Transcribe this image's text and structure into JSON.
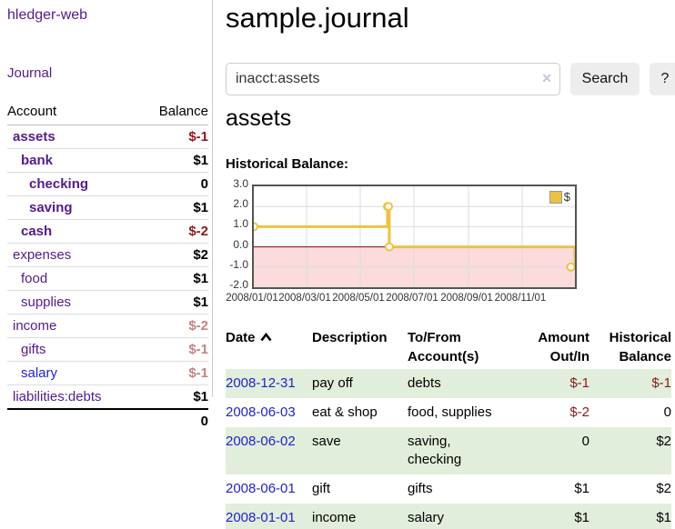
{
  "app": {
    "brand": "hledger-web"
  },
  "colors": {
    "accent_purple": "#551a8b",
    "link_blue": "#2222dd",
    "negative_strong": "#8b1a1a",
    "negative_soft": "#c48383",
    "stripe_green": "#e1eedb",
    "chart_line": "#edc240",
    "chart_negative_fill": "#fbdbdb",
    "chart_zero_line": "#8b0000",
    "chart_grid": "#dcdcdc"
  },
  "sidebar": {
    "journal_link": "Journal",
    "accounts": {
      "headers": {
        "account": "Account",
        "balance": "Balance"
      },
      "rows": [
        {
          "name": "assets",
          "balance": "$-1",
          "indent": 0,
          "bold": true
        },
        {
          "name": "bank",
          "balance": "$1",
          "indent": 1,
          "bold": true
        },
        {
          "name": "checking",
          "balance": "0",
          "indent": 2,
          "bold": true
        },
        {
          "name": "saving",
          "balance": "$1",
          "indent": 2,
          "bold": true
        },
        {
          "name": "cash",
          "balance": "$-2",
          "indent": 1,
          "bold": true
        },
        {
          "name": "expenses",
          "balance": "$2",
          "indent": 0,
          "bold": false
        },
        {
          "name": "food",
          "balance": "$1",
          "indent": 1,
          "bold": false
        },
        {
          "name": "supplies",
          "balance": "$1",
          "indent": 1,
          "bold": false
        },
        {
          "name": "income",
          "balance": "$-2",
          "indent": 0,
          "bold": false
        },
        {
          "name": "gifts",
          "balance": "$-1",
          "indent": 1,
          "bold": false
        },
        {
          "name": "salary",
          "balance": "$-1",
          "indent": 1,
          "bold": false,
          "blue": true
        },
        {
          "name": "liabilities:debts",
          "balance": "$1",
          "indent": 0,
          "bold": false
        }
      ],
      "total": "0"
    }
  },
  "main": {
    "title": "sample.journal",
    "search": {
      "value": "inacct:assets",
      "clear_icon_glyph": "✕",
      "search_button": "Search",
      "help_button": "?"
    },
    "account_heading": "assets",
    "chart_heading": "Historical Balance:"
  },
  "chart_data": {
    "type": "line",
    "title": "Historical Balance",
    "step": true,
    "series": [
      {
        "name": "$",
        "color": "#edc240",
        "points": [
          [
            "2008-01-01",
            1
          ],
          [
            "2008-06-01",
            2
          ],
          [
            "2008-06-02",
            2
          ],
          [
            "2008-06-03",
            0
          ],
          [
            "2008-12-31",
            -1
          ]
        ]
      }
    ],
    "xlim": [
      "2008-01-01",
      "2008-12-31"
    ],
    "ylim": [
      -2,
      3
    ],
    "x_ticks": [
      {
        "label": "2008/01/01",
        "date": "2008-01-01"
      },
      {
        "label": "2008/03/01",
        "date": "2008-03-01"
      },
      {
        "label": "2008/05/01",
        "date": "2008-05-01"
      },
      {
        "label": "2008/07/01",
        "date": "2008-07-01"
      },
      {
        "label": "2008/09/01",
        "date": "2008-09-01"
      },
      {
        "label": "2008/11/01",
        "date": "2008-11-01"
      }
    ],
    "y_ticks": [
      {
        "label": "3.0",
        "value": 3
      },
      {
        "label": "2.0",
        "value": 2
      },
      {
        "label": "1.0",
        "value": 1
      },
      {
        "label": "0.0",
        "value": 0
      },
      {
        "label": "-1.0",
        "value": -1
      },
      {
        "label": "-2.0",
        "value": -2
      }
    ],
    "grid": true,
    "legend": {
      "label": "$",
      "position": "top-right"
    },
    "negative_region_color": "#fbdbdb",
    "zero_line_color": "#8b0000",
    "grid_color": "#dcdcdc"
  },
  "register": {
    "headers": {
      "date": "Date",
      "description": "Description",
      "accounts": "To/From Account(s)",
      "amount": "Amount Out/In",
      "balance": "Historical Balance"
    },
    "rows": [
      {
        "date": "2008-12-31",
        "description": "pay off",
        "accounts": "debts",
        "amount": "$-1",
        "balance": "$-1"
      },
      {
        "date": "2008-06-03",
        "description": "eat & shop",
        "accounts": "food, supplies",
        "amount": "$-2",
        "balance": "0"
      },
      {
        "date": "2008-06-02",
        "description": "save",
        "accounts": "saving, checking",
        "amount": "0",
        "balance": "$2"
      },
      {
        "date": "2008-06-01",
        "description": "gift",
        "accounts": "gifts",
        "amount": "$1",
        "balance": "$2"
      },
      {
        "date": "2008-01-01",
        "description": "income",
        "accounts": "salary",
        "amount": "$1",
        "balance": "$1"
      }
    ]
  }
}
